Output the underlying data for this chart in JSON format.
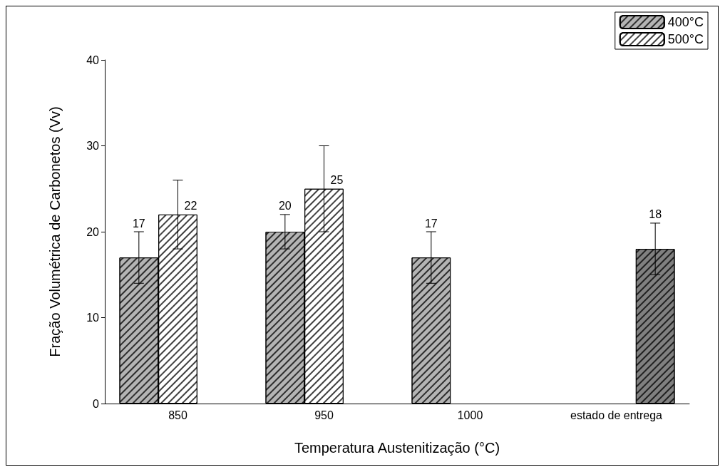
{
  "chart_data": {
    "type": "bar",
    "xlabel": "Temperatura Austenitização (°C)",
    "ylabel": "Fração Volumétrica de Carbonetos (Vv)",
    "categories": [
      "850",
      "950",
      "1000",
      "estado de entrega"
    ],
    "series": [
      {
        "name": "400°C",
        "color": "#b4b4b4",
        "values": [
          17,
          20,
          17,
          null
        ],
        "errors": [
          [
            14,
            20
          ],
          [
            18,
            22
          ],
          [
            14,
            20
          ],
          null
        ]
      },
      {
        "name": "500°C",
        "color": "#ffffff",
        "values": [
          22,
          25,
          null,
          null
        ],
        "errors": [
          [
            18,
            26
          ],
          [
            20,
            30
          ],
          null,
          null
        ]
      },
      {
        "color": "#808080",
        "values": [
          null,
          null,
          null,
          18
        ],
        "errors": [
          null,
          null,
          null,
          [
            15,
            21
          ]
        ]
      }
    ],
    "ylim": [
      0,
      40
    ],
    "yticks": [
      0,
      10,
      20,
      30,
      40
    ],
    "grid": false,
    "legend": "top right",
    "data_labels": true
  }
}
